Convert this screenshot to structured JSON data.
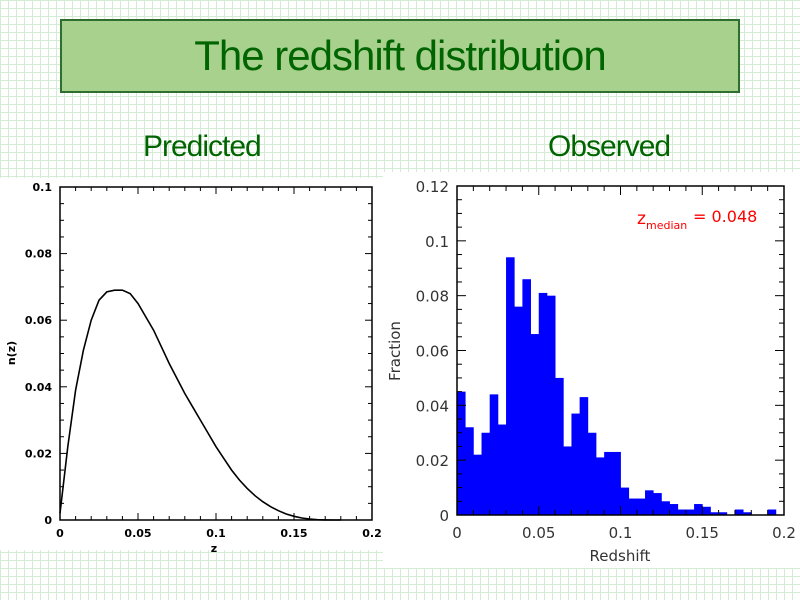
{
  "slide": {
    "title": "The redshift distribution",
    "left_heading": "Predicted",
    "right_heading": "Observed"
  },
  "colors": {
    "title_fill": "#a9d18e",
    "title_text": "#006400",
    "grid": "#d4ecd4",
    "histogram_fill": "#0000ff",
    "annotation": "#ff0000"
  },
  "chart_data": [
    {
      "type": "line",
      "xlabel": "z",
      "ylabel": "n(z)",
      "xlim": [
        0,
        0.2
      ],
      "ylim": [
        0,
        0.1
      ],
      "xticks": [
        0,
        0.05,
        0.1,
        0.15,
        0.2
      ],
      "xtick_labels": [
        "0",
        "0.05",
        "0.1",
        "0.15",
        "0.2"
      ],
      "yticks": [
        0,
        0.02,
        0.04,
        0.06,
        0.08,
        0.1
      ],
      "ytick_labels": [
        "0",
        "0.02",
        "0.04",
        "0.06",
        "0.08",
        "0.1"
      ],
      "series": [
        {
          "x": [
            0,
            0.005,
            0.01,
            0.015,
            0.02,
            0.025,
            0.03,
            0.035,
            0.04,
            0.045,
            0.05,
            0.055,
            0.06,
            0.065,
            0.07,
            0.075,
            0.08,
            0.085,
            0.09,
            0.095,
            0.1,
            0.105,
            0.11,
            0.115,
            0.12,
            0.125,
            0.13,
            0.135,
            0.14,
            0.145,
            0.15,
            0.155,
            0.16,
            0.165,
            0.17,
            0.175,
            0.18
          ],
          "y": [
            0.002,
            0.022,
            0.039,
            0.051,
            0.06,
            0.066,
            0.0685,
            0.069,
            0.069,
            0.068,
            0.065,
            0.061,
            0.057,
            0.052,
            0.047,
            0.0425,
            0.038,
            0.034,
            0.03,
            0.026,
            0.022,
            0.0185,
            0.015,
            0.012,
            0.0095,
            0.0073,
            0.0055,
            0.004,
            0.0028,
            0.0018,
            0.0011,
            0.0006,
            0.0003,
            0.0001,
            3e-05,
            0.0,
            0.0
          ]
        }
      ]
    },
    {
      "type": "bar",
      "xlabel": "Redshift",
      "ylabel": "Fraction",
      "xlim": [
        0,
        0.2
      ],
      "ylim": [
        0,
        0.12
      ],
      "xticks": [
        0,
        0.05,
        0.1,
        0.15,
        0.2
      ],
      "xtick_labels": [
        "0",
        "0.05",
        "0.1",
        "0.15",
        "0.2"
      ],
      "yticks": [
        0,
        0.02,
        0.04,
        0.06,
        0.08,
        0.1,
        0.12
      ],
      "ytick_labels": [
        "0",
        "0.02",
        "0.04",
        "0.06",
        "0.08",
        "0.1",
        "0.12"
      ],
      "bin_width": 0.005,
      "bin_starts": [
        0,
        0.005,
        0.01,
        0.015,
        0.02,
        0.025,
        0.03,
        0.035,
        0.04,
        0.045,
        0.05,
        0.055,
        0.06,
        0.065,
        0.07,
        0.075,
        0.08,
        0.085,
        0.09,
        0.095,
        0.1,
        0.105,
        0.11,
        0.115,
        0.12,
        0.125,
        0.13,
        0.135,
        0.14,
        0.145,
        0.15,
        0.155,
        0.16,
        0.165,
        0.17,
        0.175,
        0.18,
        0.185,
        0.19,
        0.195
      ],
      "values": [
        0.045,
        0.032,
        0.022,
        0.03,
        0.044,
        0.033,
        0.094,
        0.076,
        0.086,
        0.066,
        0.081,
        0.08,
        0.05,
        0.025,
        0.037,
        0.043,
        0.03,
        0.021,
        0.023,
        0.023,
        0.01,
        0.006,
        0.006,
        0.009,
        0.008,
        0.005,
        0.004,
        0.002,
        0.002,
        0.004,
        0.003,
        0.001,
        0.001,
        0.0,
        0.002,
        0.001,
        0.0,
        0.0,
        0.002,
        0.0
      ],
      "annotation": {
        "symbol": "z",
        "subscript": "median",
        "text": "= 0.048",
        "value": 0.048
      }
    }
  ]
}
